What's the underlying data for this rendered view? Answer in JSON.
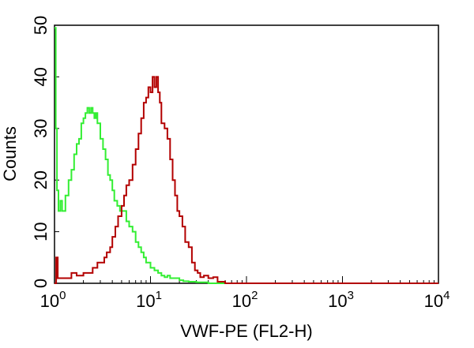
{
  "chart_data": {
    "type": "line",
    "title": "",
    "xlabel": "VWF-PE (FL2-H)",
    "ylabel": "Counts",
    "x_scale": "log",
    "xlim": [
      1,
      10000
    ],
    "ylim": [
      0,
      50
    ],
    "x_ticks": [
      {
        "base": "10",
        "exp": "0",
        "value": 1
      },
      {
        "base": "10",
        "exp": "1",
        "value": 10
      },
      {
        "base": "10",
        "exp": "2",
        "value": 100
      },
      {
        "base": "10",
        "exp": "3",
        "value": 1000
      },
      {
        "base": "10",
        "exp": "4",
        "value": 10000
      }
    ],
    "y_ticks": [
      "0",
      "10",
      "20",
      "30",
      "40",
      "50"
    ],
    "grid": false,
    "legend": "none",
    "series": [
      {
        "color": "#33ee33",
        "points": [
          [
            1.0,
            49.5
          ],
          [
            1.03,
            30
          ],
          [
            1.06,
            18
          ],
          [
            1.1,
            14
          ],
          [
            1.15,
            16
          ],
          [
            1.2,
            14
          ],
          [
            1.3,
            17
          ],
          [
            1.4,
            20
          ],
          [
            1.5,
            22
          ],
          [
            1.6,
            25
          ],
          [
            1.7,
            27
          ],
          [
            1.8,
            28
          ],
          [
            1.9,
            31
          ],
          [
            2.0,
            32
          ],
          [
            2.1,
            33
          ],
          [
            2.2,
            34
          ],
          [
            2.3,
            33
          ],
          [
            2.4,
            34
          ],
          [
            2.5,
            33
          ],
          [
            2.6,
            32
          ],
          [
            2.7,
            33
          ],
          [
            2.8,
            31
          ],
          [
            3.0,
            28
          ],
          [
            3.2,
            26
          ],
          [
            3.4,
            24
          ],
          [
            3.6,
            21
          ],
          [
            3.8,
            20
          ],
          [
            4.0,
            18
          ],
          [
            4.2,
            16
          ],
          [
            4.5,
            15
          ],
          [
            4.8,
            14
          ],
          [
            5.2,
            14
          ],
          [
            5.6,
            12
          ],
          [
            6.0,
            11
          ],
          [
            6.5,
            10
          ],
          [
            7.0,
            8
          ],
          [
            7.5,
            7
          ],
          [
            8.0,
            6
          ],
          [
            8.5,
            5
          ],
          [
            9.0,
            4
          ],
          [
            10,
            3
          ],
          [
            11,
            2.5
          ],
          [
            12,
            2
          ],
          [
            13,
            1.5
          ],
          [
            14,
            1.2
          ],
          [
            15,
            1.5
          ],
          [
            16,
            1
          ],
          [
            18,
            1
          ],
          [
            20,
            0.6
          ],
          [
            22,
            0.4
          ],
          [
            25,
            0.3
          ],
          [
            30,
            0.2
          ],
          [
            40,
            0
          ],
          [
            10000,
            0
          ]
        ]
      },
      {
        "color": "#b30000",
        "points": [
          [
            1.0,
            0
          ],
          [
            1.04,
            5
          ],
          [
            1.08,
            1
          ],
          [
            1.3,
            1
          ],
          [
            1.5,
            2
          ],
          [
            1.7,
            1.5
          ],
          [
            2.0,
            2
          ],
          [
            2.3,
            2
          ],
          [
            2.5,
            3
          ],
          [
            2.8,
            4
          ],
          [
            3.0,
            4
          ],
          [
            3.3,
            5
          ],
          [
            3.5,
            6
          ],
          [
            3.8,
            7
          ],
          [
            4.0,
            9
          ],
          [
            4.3,
            11
          ],
          [
            4.6,
            13
          ],
          [
            5.0,
            15
          ],
          [
            5.3,
            17
          ],
          [
            5.6,
            19
          ],
          [
            6.0,
            20
          ],
          [
            6.5,
            23
          ],
          [
            7.0,
            26
          ],
          [
            7.5,
            29
          ],
          [
            8.0,
            32
          ],
          [
            8.5,
            35
          ],
          [
            9.0,
            36
          ],
          [
            9.5,
            38
          ],
          [
            10.0,
            37
          ],
          [
            10.5,
            40
          ],
          [
            11.0,
            38
          ],
          [
            11.5,
            40
          ],
          [
            12.0,
            37
          ],
          [
            12.5,
            35
          ],
          [
            13.0,
            31
          ],
          [
            14.0,
            30
          ],
          [
            15.0,
            28
          ],
          [
            16.0,
            24
          ],
          [
            17.0,
            20
          ],
          [
            18.0,
            17
          ],
          [
            19.0,
            14
          ],
          [
            20.0,
            13
          ],
          [
            21.5,
            11
          ],
          [
            23.0,
            8
          ],
          [
            25.0,
            7
          ],
          [
            27.0,
            4
          ],
          [
            29.0,
            2.5
          ],
          [
            31.0,
            2
          ],
          [
            33.0,
            1.2
          ],
          [
            36.0,
            1.5
          ],
          [
            40.0,
            1
          ],
          [
            45.0,
            1.2
          ],
          [
            50.0,
            0.3
          ],
          [
            60.0,
            0
          ],
          [
            10000,
            0
          ]
        ]
      }
    ]
  }
}
